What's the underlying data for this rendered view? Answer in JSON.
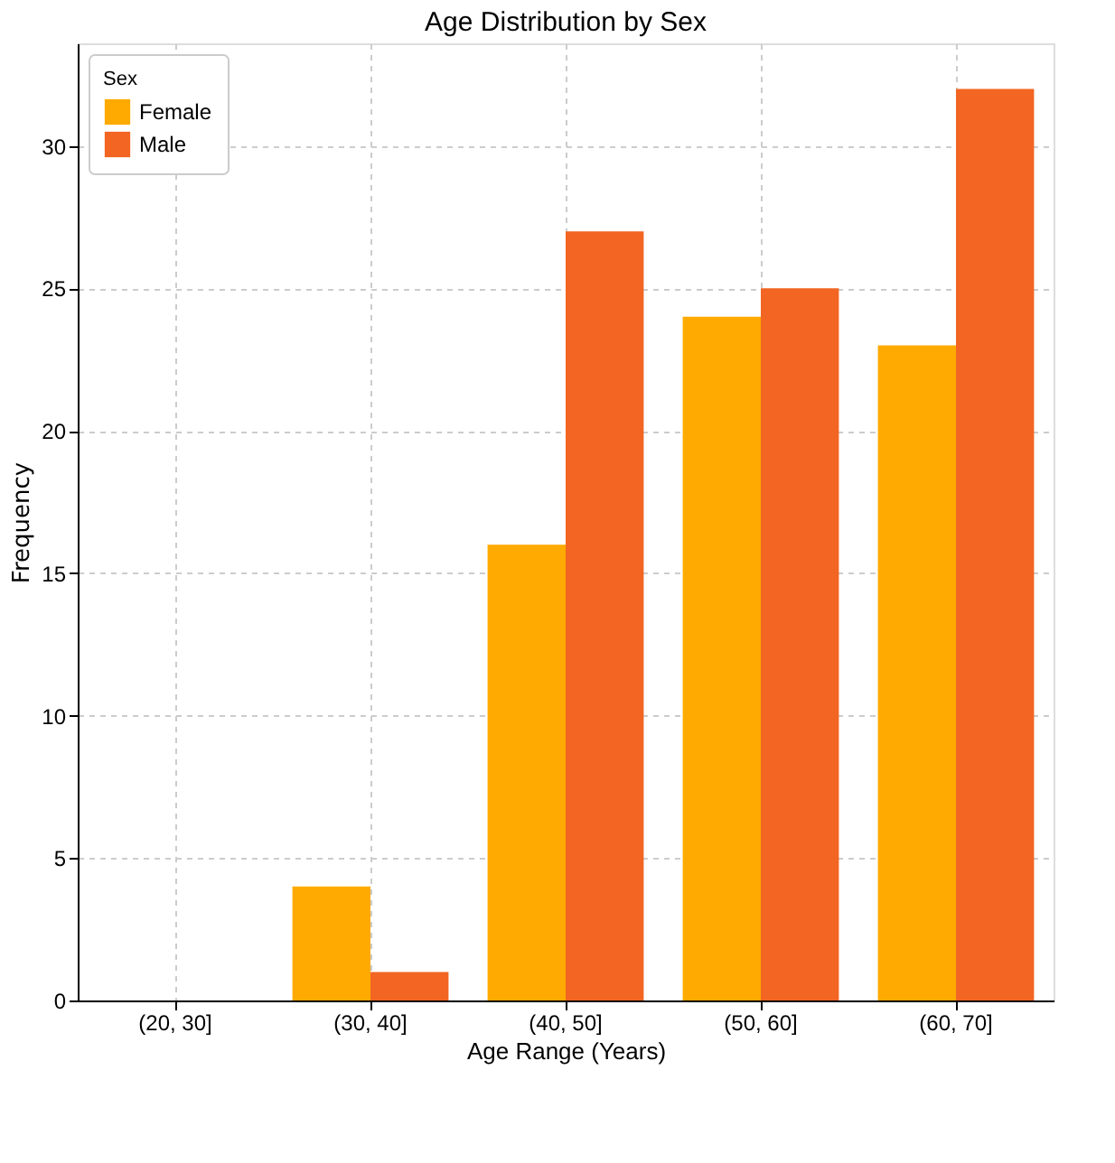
{
  "chart_data": {
    "type": "bar",
    "title": "Age Distribution by Sex",
    "xlabel": "Age Range (Years)",
    "ylabel": "Frequency",
    "legend_title": "Sex",
    "categories": [
      "(20, 30]",
      "(30, 40]",
      "(40, 50]",
      "(50, 60]",
      "(60, 70]"
    ],
    "series": [
      {
        "name": "Female",
        "color": "#ffaa00",
        "values": [
          0,
          4,
          16,
          24,
          23
        ]
      },
      {
        "name": "Male",
        "color": "#f26522",
        "values": [
          0,
          1,
          27,
          25,
          32
        ]
      }
    ],
    "ylim": [
      0,
      33.6
    ],
    "yticks": [
      0,
      5,
      10,
      15,
      20,
      25,
      30
    ],
    "grid": true,
    "legend": "top left"
  }
}
